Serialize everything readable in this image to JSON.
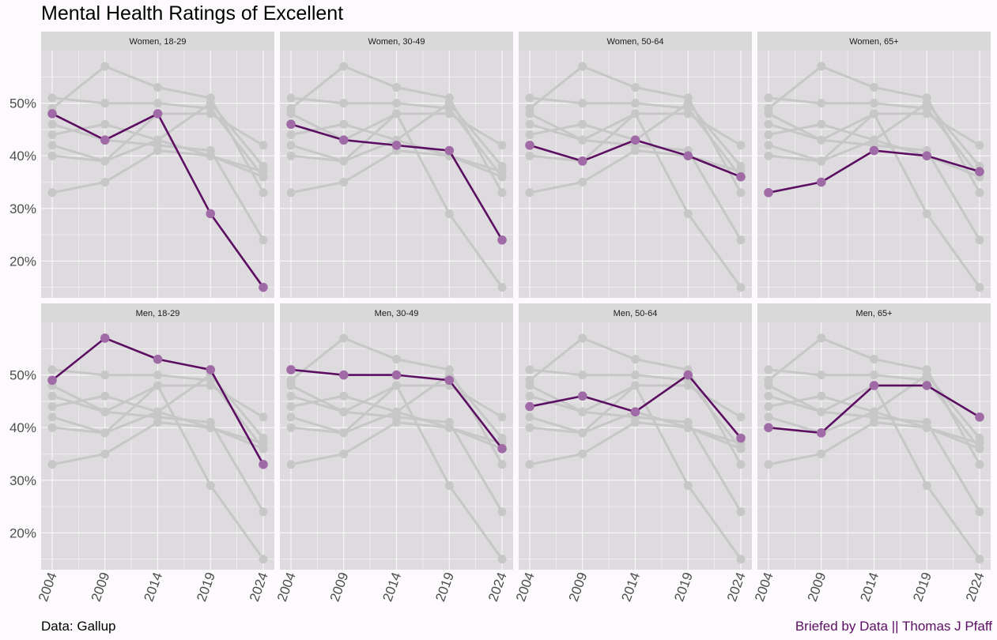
{
  "title": "Mental Health Ratings of Excellent",
  "caption_left": "Data: Gallup",
  "caption_right": "Briefed by Data || Thomas J Pfaff",
  "colors": {
    "panel_bg": "#dedbde",
    "strip_bg": "#d9d9d9",
    "grid": "#f7f6f7",
    "other_series": "#c7c7c7",
    "highlight_line": "#5c0f62",
    "highlight_point": "#a06aa6"
  },
  "chart_data": {
    "type": "line",
    "facet_layout": "2 rows x 4 columns, small multiples; each panel highlights one group and shows all other groups in grey",
    "x": [
      2004,
      2009,
      2014,
      2019,
      2024
    ],
    "x_tick_labels": [
      "2004",
      "2009",
      "2014",
      "2019",
      "2024"
    ],
    "ylim": [
      13,
      60
    ],
    "y_ticks": [
      20,
      30,
      40,
      50
    ],
    "y_tick_labels": [
      "20%",
      "30%",
      "40%",
      "50%"
    ],
    "grid": true,
    "xlabel": "",
    "ylabel": "",
    "series": [
      {
        "name": "Women, 18-29",
        "values": [
          48,
          43,
          48,
          29,
          15
        ]
      },
      {
        "name": "Women, 30-49",
        "values": [
          46,
          43,
          42,
          41,
          24
        ]
      },
      {
        "name": "Women, 50-64",
        "values": [
          42,
          39,
          43,
          40,
          36
        ]
      },
      {
        "name": "Women, 65+",
        "values": [
          33,
          35,
          41,
          40,
          37
        ]
      },
      {
        "name": "Men, 18-29",
        "values": [
          49,
          57,
          53,
          51,
          33
        ]
      },
      {
        "name": "Men, 30-49",
        "values": [
          51,
          50,
          50,
          49,
          36
        ]
      },
      {
        "name": "Men, 50-64",
        "values": [
          44,
          46,
          43,
          50,
          38
        ]
      },
      {
        "name": "Men, 65+",
        "values": [
          40,
          39,
          48,
          48,
          42
        ]
      }
    ]
  }
}
